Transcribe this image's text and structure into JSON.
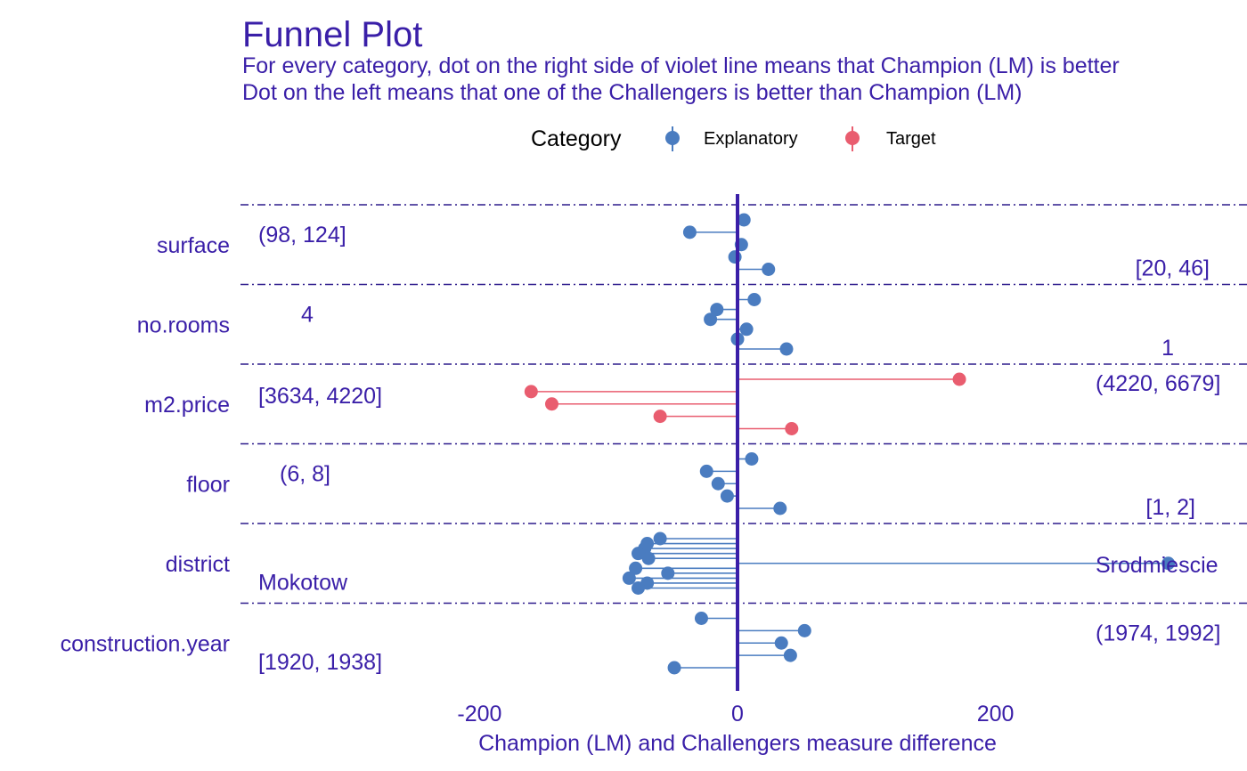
{
  "chart_data": {
    "type": "scatter",
    "title": "Funnel Plot",
    "subtitle_lines": [
      "For every category, dot on the right side of violet line means that Champion (LM) is better",
      "Dot on the left means that one of the Challengers is better than Champion (LM)"
    ],
    "xlabel": "Champion (LM) and Challengers measure difference",
    "ylabel": "",
    "xlim": [
      -385,
      395
    ],
    "x_ticks": [
      -200,
      0,
      200
    ],
    "legend": {
      "title": "Category",
      "placement": "top",
      "entries": [
        {
          "name": "Explanatory",
          "color": "#4a7cc0"
        },
        {
          "name": "Target",
          "color": "#e95d6f"
        }
      ]
    },
    "colors": {
      "text": "#3a1fa8",
      "zero_line": "#3a1fa8",
      "separator": "#2d1b8c"
    },
    "grid": false,
    "panels": [
      {
        "variable": "surface",
        "category": "Explanatory",
        "values": [
          5,
          -37,
          3,
          -2,
          24
        ],
        "label_left": "(98, 124]",
        "label_right": "[20, 46]"
      },
      {
        "variable": "no.rooms",
        "category": "Explanatory",
        "values": [
          13,
          -16,
          -21,
          7,
          0,
          38
        ],
        "label_left": "4",
        "label_right": "1"
      },
      {
        "variable": "m2.price",
        "category": "Target",
        "values": [
          172,
          -160,
          -144,
          -60,
          42
        ],
        "label_left": "[3634, 4220]",
        "label_right": "(4220, 6679]"
      },
      {
        "variable": "floor",
        "category": "Explanatory",
        "values": [
          11,
          -24,
          -15,
          -8,
          33
        ],
        "label_left": "(6, 8]",
        "label_right": "[1, 2]"
      },
      {
        "variable": "district",
        "category": "Explanatory",
        "values": [
          -60,
          -70,
          -72,
          -77,
          -69,
          334,
          -79,
          -54,
          -84,
          -70,
          -77
        ],
        "label_left": "Mokotow",
        "label_right": "Srodmiescie"
      },
      {
        "variable": "construction.year",
        "category": "Explanatory",
        "values": [
          -28,
          52,
          34,
          41,
          -49
        ],
        "label_left": "[1920, 1938]",
        "label_right": "(1974, 1992]"
      }
    ]
  }
}
